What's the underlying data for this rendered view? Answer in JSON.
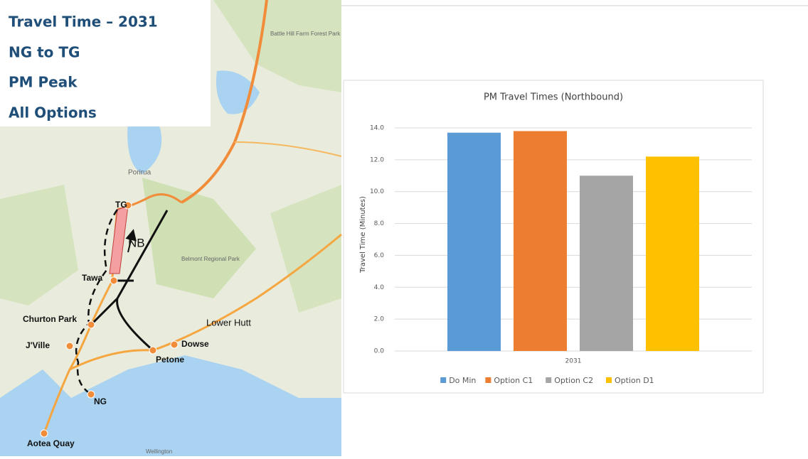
{
  "slide": {
    "title_lines": [
      "Travel Time – 2031",
      "NG to TG",
      "PM Peak",
      "All Options"
    ]
  },
  "map": {
    "labels": [
      "TG",
      "NB",
      "Tawa",
      "Churton Park",
      "J'Ville",
      "NG",
      "Aotea Quay",
      "Petone",
      "Dowse",
      "Lower Hutt",
      "Porirua",
      "Belmont Regional Park",
      "Battle Hill Farm Forest Park",
      "Wellington"
    ]
  },
  "chart_data": {
    "type": "bar",
    "title": "PM Travel Times (Northbound)",
    "y_label": "Travel Time (Minutes)",
    "categories": [
      "2031"
    ],
    "series": [
      {
        "name": "Do Min",
        "color": "#5b9bd5",
        "values": [
          13.7
        ]
      },
      {
        "name": "Option C1",
        "color": "#ed7d31",
        "values": [
          13.8
        ]
      },
      {
        "name": "Option C2",
        "color": "#a5a5a5",
        "values": [
          11.0
        ]
      },
      {
        "name": "Option D1",
        "color": "#ffc000",
        "values": [
          12.2
        ]
      }
    ],
    "ylim": [
      0,
      14
    ],
    "yticks": [
      {
        "value": 0,
        "label": "0.0"
      },
      {
        "value": 2,
        "label": "2.0"
      },
      {
        "value": 4,
        "label": "4.0"
      },
      {
        "value": 6,
        "label": "6.0"
      },
      {
        "value": 8,
        "label": "8.0"
      },
      {
        "value": 10,
        "label": "10.0"
      },
      {
        "value": 12,
        "label": "12.0"
      },
      {
        "value": 14,
        "label": "14.0"
      }
    ],
    "grid": true,
    "legend": "bottom"
  }
}
